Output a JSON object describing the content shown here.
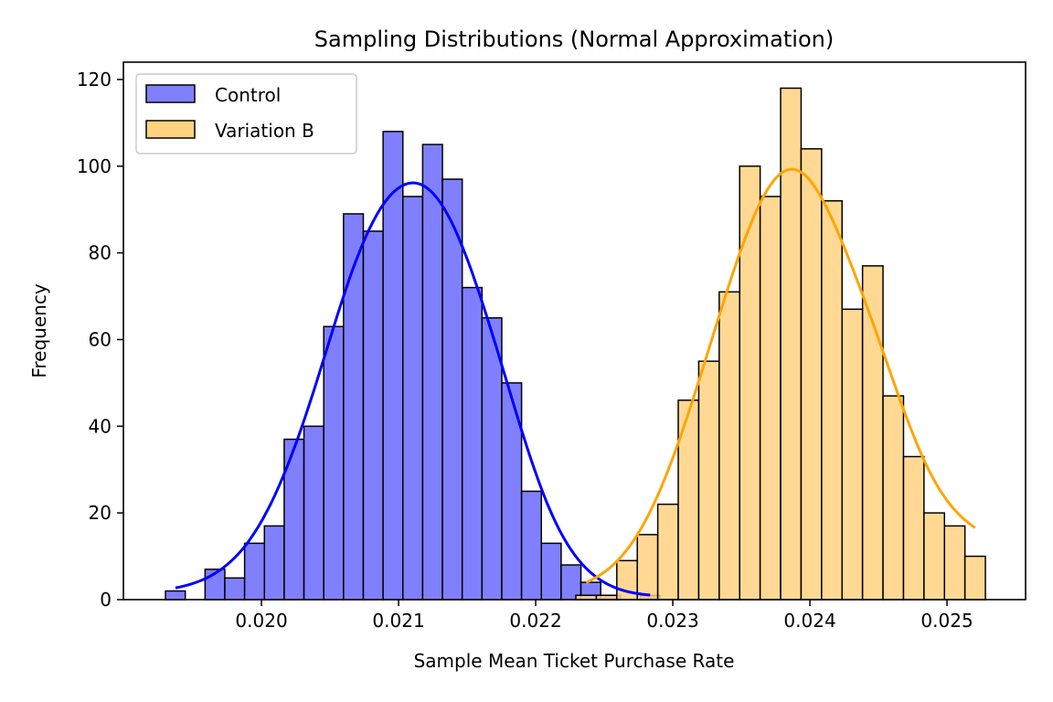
{
  "chart_data": {
    "type": "bar",
    "title": "Sampling Distributions (Normal Approximation)",
    "xlabel": "Sample Mean Ticket Purchase Rate",
    "ylabel": "Frequency",
    "xlim": [
      0.018993,
      0.025573
    ],
    "ylim": [
      0,
      124
    ],
    "xticks": [
      0.02,
      0.021,
      0.022,
      0.023,
      0.024,
      0.025
    ],
    "xtick_labels": [
      "0.020",
      "0.021",
      "0.022",
      "0.023",
      "0.024",
      "0.025"
    ],
    "yticks": [
      0,
      20,
      40,
      60,
      80,
      100,
      120
    ],
    "ytick_labels": [
      "0",
      "20",
      "40",
      "60",
      "80",
      "100",
      "120"
    ],
    "grid": false,
    "legend_placement": "top-left",
    "series": [
      {
        "name": "Control",
        "fill": "#8080ff",
        "line_color": "#0000ff",
        "bin_start": 0.0193,
        "bin_end": 0.022907,
        "values": [
          2,
          0,
          7,
          5,
          13,
          17,
          37,
          40,
          63,
          89,
          85,
          108,
          93,
          105,
          97,
          72,
          65,
          50,
          25,
          13,
          8,
          4,
          1,
          0,
          1
        ]
      },
      {
        "name": "Variation B",
        "fill": "#ffd280",
        "line_color": "#ffa500",
        "bin_start": 0.022293,
        "bin_end": 0.02528,
        "values": [
          1,
          1,
          9,
          15,
          22,
          46,
          55,
          71,
          100,
          93,
          118,
          104,
          92,
          67,
          77,
          47,
          33,
          20,
          17,
          10
        ]
      }
    ]
  }
}
